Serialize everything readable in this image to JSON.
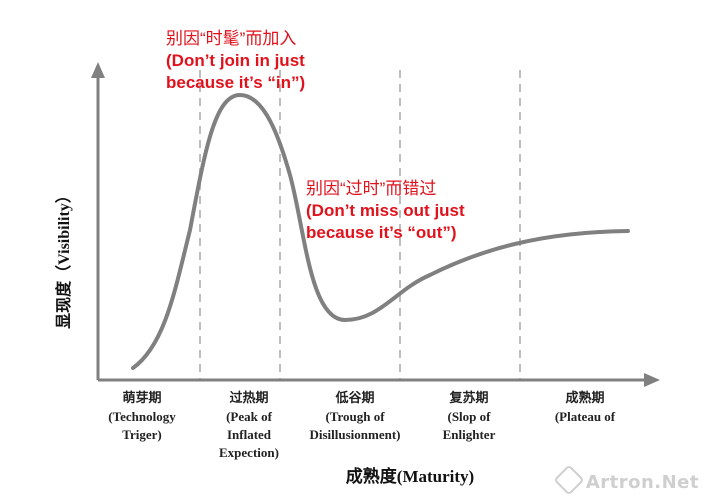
{
  "diagram": {
    "y_axis_label": "显现度（Visibility）",
    "x_axis_label": "成熟度(Maturity)",
    "annotations": [
      {
        "id": "in",
        "cn": "别因“时髦”而加入",
        "en_line1": "(Don’t join in just",
        "en_line2": "because it’s “in”)"
      },
      {
        "id": "out",
        "cn": "别因“过时”而错过",
        "en_line1": "(Don’t miss out just",
        "en_line2": "because it’s “out”)"
      }
    ],
    "phases": [
      {
        "cn": "萌芽期",
        "en": [
          "(Technology",
          "Triger)"
        ]
      },
      {
        "cn": "过热期",
        "en": [
          "(Peak of",
          "Inflated",
          "Expection)"
        ]
      },
      {
        "cn": "低谷期",
        "en": [
          "(Trough of",
          "Disillusionment)"
        ]
      },
      {
        "cn": "复苏期",
        "en": [
          "(Slop of",
          "Enlighter"
        ]
      },
      {
        "cn": "成熟期",
        "en": [
          "(Plateau of"
        ]
      }
    ],
    "colors": {
      "curve": "#808080",
      "axis": "#808080",
      "divider": "#bdbdbd",
      "annotation": "#e0121c"
    }
  },
  "watermark": {
    "text": "Artron.Net",
    "icon": "artron-logo-icon"
  }
}
